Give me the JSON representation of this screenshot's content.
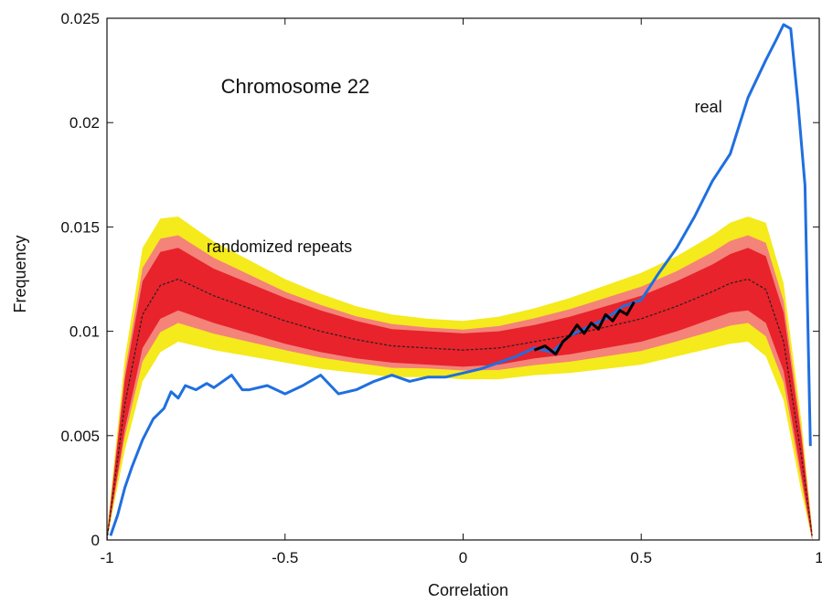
{
  "chart_data": {
    "type": "line",
    "title": "",
    "xlabel": "Correlation",
    "ylabel": "Frequency",
    "xlim": [
      -1,
      1
    ],
    "ylim": [
      0,
      0.025
    ],
    "x_ticks": [
      -1,
      -0.5,
      0,
      0.5,
      1
    ],
    "x_tick_labels": [
      "-1",
      "-0.5",
      "0",
      "0.5",
      "1"
    ],
    "y_ticks": [
      0,
      0.005,
      0.01,
      0.015,
      0.02,
      0.025
    ],
    "y_tick_labels": [
      "0",
      "0.005",
      "0.01",
      "0.015",
      "0.02",
      "0.025"
    ],
    "grid": false,
    "annotations": [
      {
        "text": "Chromosome 22",
        "x": -0.68,
        "y": 0.0214
      },
      {
        "text": "real",
        "x": 0.65,
        "y": 0.0205
      },
      {
        "text": "randomized repeats",
        "x": -0.72,
        "y": 0.0138
      }
    ],
    "series": [
      {
        "name": "real",
        "color": "#1f6fe0",
        "x": [
          -0.99,
          -0.97,
          -0.95,
          -0.93,
          -0.9,
          -0.87,
          -0.84,
          -0.82,
          -0.8,
          -0.78,
          -0.75,
          -0.72,
          -0.7,
          -0.65,
          -0.62,
          -0.6,
          -0.55,
          -0.5,
          -0.45,
          -0.4,
          -0.35,
          -0.3,
          -0.25,
          -0.2,
          -0.15,
          -0.1,
          -0.05,
          0.0,
          0.05,
          0.1,
          0.15,
          0.2,
          0.25,
          0.3,
          0.35,
          0.4,
          0.45,
          0.5,
          0.55,
          0.6,
          0.65,
          0.7,
          0.75,
          0.8,
          0.85,
          0.88,
          0.9,
          0.92,
          0.94,
          0.96,
          0.975
        ],
        "y": [
          0.0002,
          0.0012,
          0.0025,
          0.0035,
          0.0048,
          0.0058,
          0.0063,
          0.0071,
          0.0068,
          0.0074,
          0.0072,
          0.0075,
          0.0073,
          0.0079,
          0.0072,
          0.0072,
          0.0074,
          0.007,
          0.0074,
          0.0079,
          0.007,
          0.0072,
          0.0076,
          0.0079,
          0.0076,
          0.0078,
          0.0078,
          0.008,
          0.0082,
          0.0085,
          0.0088,
          0.0092,
          0.009,
          0.0098,
          0.0102,
          0.0106,
          0.0112,
          0.0115,
          0.0128,
          0.014,
          0.0155,
          0.0172,
          0.0185,
          0.0212,
          0.023,
          0.024,
          0.0247,
          0.0245,
          0.021,
          0.017,
          0.0045
        ]
      },
      {
        "name": "randomized repeats",
        "color": "#222222",
        "x": [
          -1.0,
          -0.95,
          -0.9,
          -0.85,
          -0.8,
          -0.75,
          -0.7,
          -0.6,
          -0.5,
          -0.4,
          -0.3,
          -0.2,
          -0.1,
          0.0,
          0.1,
          0.2,
          0.3,
          0.4,
          0.5,
          0.6,
          0.7,
          0.75,
          0.8,
          0.85,
          0.9,
          0.95,
          0.98
        ],
        "y": [
          0.0,
          0.0065,
          0.0108,
          0.0122,
          0.0125,
          0.0121,
          0.0117,
          0.0111,
          0.0105,
          0.01,
          0.0096,
          0.0093,
          0.0092,
          0.0091,
          0.0092,
          0.0095,
          0.0098,
          0.0102,
          0.0106,
          0.0112,
          0.0119,
          0.0123,
          0.0125,
          0.012,
          0.0095,
          0.004,
          0.0002
        ],
        "band_inner": [
          0.0002,
          0.0012,
          0.0016,
          0.0016,
          0.0015,
          0.0014,
          0.0013,
          0.0012,
          0.0011,
          0.001,
          0.0009,
          0.0008,
          0.0008,
          0.0008,
          0.0008,
          0.0008,
          0.0009,
          0.001,
          0.0011,
          0.0012,
          0.0013,
          0.0014,
          0.0015,
          0.0016,
          0.0014,
          0.0009,
          0.0002
        ],
        "band_outer": [
          0.0004,
          0.0022,
          0.0032,
          0.0032,
          0.003,
          0.0028,
          0.0026,
          0.0023,
          0.002,
          0.0018,
          0.0016,
          0.0015,
          0.0014,
          0.0014,
          0.0015,
          0.0016,
          0.0018,
          0.002,
          0.0022,
          0.0024,
          0.0027,
          0.0029,
          0.003,
          0.0032,
          0.0028,
          0.0017,
          0.0004
        ],
        "band_inner_color": "#e8232b",
        "band_outer_color": "#f5ea1c",
        "band_mid_color": "#f4837a"
      }
    ],
    "overlap_segment": {
      "color": "#000000",
      "x": [
        0.2,
        0.23,
        0.26,
        0.28,
        0.3,
        0.32,
        0.34,
        0.36,
        0.38,
        0.4,
        0.42,
        0.44,
        0.46,
        0.48
      ],
      "y": [
        0.0091,
        0.0093,
        0.0089,
        0.0095,
        0.0098,
        0.0103,
        0.0099,
        0.0104,
        0.0101,
        0.0108,
        0.0105,
        0.011,
        0.0108,
        0.0114
      ]
    }
  }
}
